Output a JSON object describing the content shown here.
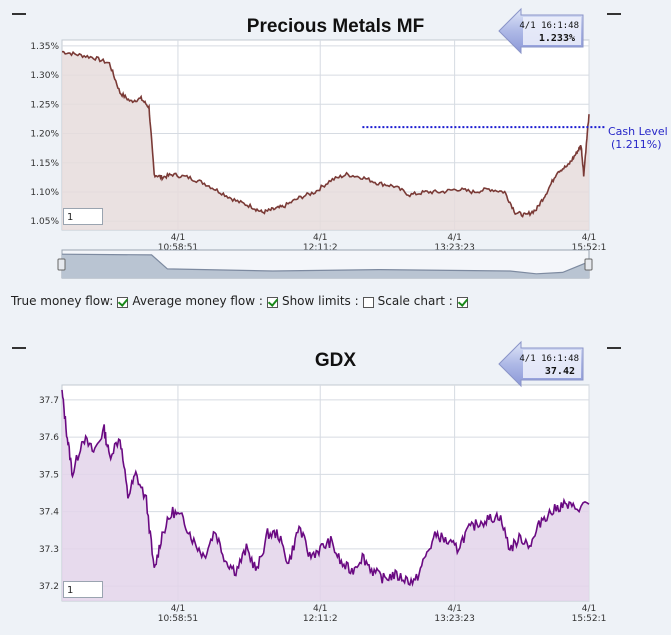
{
  "options_bar": {
    "true_money_flow": {
      "label": "True money flow:",
      "checked": true
    },
    "average_money_flow": {
      "label": "Average money flow :",
      "checked": true
    },
    "show_limits": {
      "label": "Show limits :",
      "checked": false
    },
    "scale_chart": {
      "label": "Scale chart :",
      "checked": true
    }
  },
  "charts": {
    "metals": {
      "title": "Precious Metals MF",
      "callout": {
        "time": "4/1 16:1:48",
        "value": "1.233%"
      },
      "input_value": "1",
      "cash_level": {
        "label": "Cash Level",
        "value_text": "(1.211%)",
        "value": 1.211,
        "color": "#1a1ad0"
      },
      "colors": {
        "line": "#7a3a36",
        "fill": "#e6dcdc"
      },
      "navigator_colors": {
        "line": "#7d8aa0",
        "fill": "#b9c4d2"
      }
    },
    "gdx": {
      "title": "GDX",
      "callout": {
        "time": "4/1 16:1:48",
        "value": "37.42"
      },
      "input_value": "1",
      "colors": {
        "line": "#6a0a82",
        "fill": "#e3d3ea"
      }
    }
  },
  "chart_data": [
    {
      "type": "area",
      "title": "Precious Metals MF",
      "ylabel": "",
      "xlabel": "",
      "ylim": [
        1.035,
        1.36
      ],
      "y_ticks": [
        "1.35%",
        "1.30%",
        "1.25%",
        "1.20%",
        "1.15%",
        "1.10%",
        "1.05%"
      ],
      "y_tick_values": [
        1.35,
        1.3,
        1.25,
        1.2,
        1.15,
        1.1,
        1.05
      ],
      "x_ticks": [
        {
          "date": "4/1",
          "time": "10:58:51"
        },
        {
          "date": "4/1",
          "time": "12:11:2"
        },
        {
          "date": "4/1",
          "time": "13:23:23"
        },
        {
          "date": "4/1",
          "time": "15:52:1"
        }
      ],
      "x_tick_positions": [
        0.22,
        0.49,
        0.745,
        1.0
      ],
      "x": [
        0,
        0.03,
        0.06,
        0.09,
        0.11,
        0.13,
        0.15,
        0.165,
        0.175,
        0.19,
        0.21,
        0.24,
        0.27,
        0.3,
        0.33,
        0.36,
        0.38,
        0.4,
        0.42,
        0.45,
        0.48,
        0.51,
        0.54,
        0.57,
        0.6,
        0.63,
        0.66,
        0.69,
        0.72,
        0.75,
        0.78,
        0.81,
        0.84,
        0.86,
        0.88,
        0.9,
        0.92,
        0.94,
        0.96,
        0.975,
        0.985,
        0.99,
        1.0
      ],
      "series": [
        {
          "name": "Precious Metals MF",
          "values": [
            1.34,
            1.335,
            1.33,
            1.32,
            1.27,
            1.255,
            1.26,
            1.245,
            1.13,
            1.125,
            1.13,
            1.125,
            1.115,
            1.1,
            1.085,
            1.075,
            1.065,
            1.07,
            1.075,
            1.09,
            1.1,
            1.12,
            1.13,
            1.125,
            1.115,
            1.11,
            1.095,
            1.1,
            1.1,
            1.105,
            1.1,
            1.105,
            1.1,
            1.065,
            1.06,
            1.07,
            1.1,
            1.135,
            1.145,
            1.165,
            1.18,
            1.13,
            1.233
          ]
        }
      ],
      "navigator": {
        "x": [
          0,
          0.17,
          0.2,
          0.4,
          0.6,
          0.85,
          0.9,
          0.95,
          1.0
        ],
        "values": [
          1.34,
          1.33,
          1.13,
          1.1,
          1.12,
          1.1,
          1.06,
          1.08,
          1.233
        ]
      }
    },
    {
      "type": "area",
      "title": "GDX",
      "ylabel": "",
      "xlabel": "",
      "ylim": [
        37.16,
        37.74
      ],
      "y_ticks": [
        "37.7",
        "37.6",
        "37.5",
        "37.4",
        "37.3",
        "37.2"
      ],
      "y_tick_values": [
        37.7,
        37.6,
        37.5,
        37.4,
        37.3,
        37.2
      ],
      "x_ticks": [
        {
          "date": "4/1",
          "time": "10:58:51"
        },
        {
          "date": "4/1",
          "time": "12:11:2"
        },
        {
          "date": "4/1",
          "time": "13:23:23"
        },
        {
          "date": "4/1",
          "time": "15:52:1"
        }
      ],
      "x_tick_positions": [
        0.22,
        0.49,
        0.745,
        1.0
      ],
      "x": [
        0,
        0.01,
        0.02,
        0.04,
        0.06,
        0.08,
        0.09,
        0.11,
        0.125,
        0.14,
        0.16,
        0.175,
        0.19,
        0.21,
        0.23,
        0.25,
        0.27,
        0.29,
        0.31,
        0.33,
        0.35,
        0.37,
        0.39,
        0.41,
        0.43,
        0.45,
        0.47,
        0.49,
        0.51,
        0.53,
        0.55,
        0.57,
        0.59,
        0.61,
        0.63,
        0.65,
        0.67,
        0.69,
        0.71,
        0.73,
        0.75,
        0.77,
        0.79,
        0.81,
        0.83,
        0.85,
        0.87,
        0.89,
        0.91,
        0.93,
        0.95,
        0.97,
        1.0
      ],
      "series": [
        {
          "name": "GDX",
          "values": [
            37.72,
            37.6,
            37.5,
            37.6,
            37.56,
            37.62,
            37.55,
            37.6,
            37.44,
            37.5,
            37.43,
            37.24,
            37.34,
            37.4,
            37.38,
            37.32,
            37.28,
            37.35,
            37.27,
            37.24,
            37.3,
            37.24,
            37.34,
            37.34,
            37.26,
            37.36,
            37.28,
            37.3,
            37.32,
            37.26,
            37.24,
            37.28,
            37.24,
            37.22,
            37.23,
            37.22,
            37.21,
            37.28,
            37.34,
            37.32,
            37.3,
            37.35,
            37.37,
            37.38,
            37.39,
            37.3,
            37.33,
            37.31,
            37.38,
            37.4,
            37.42,
            37.41,
            37.42
          ]
        }
      ]
    }
  ]
}
